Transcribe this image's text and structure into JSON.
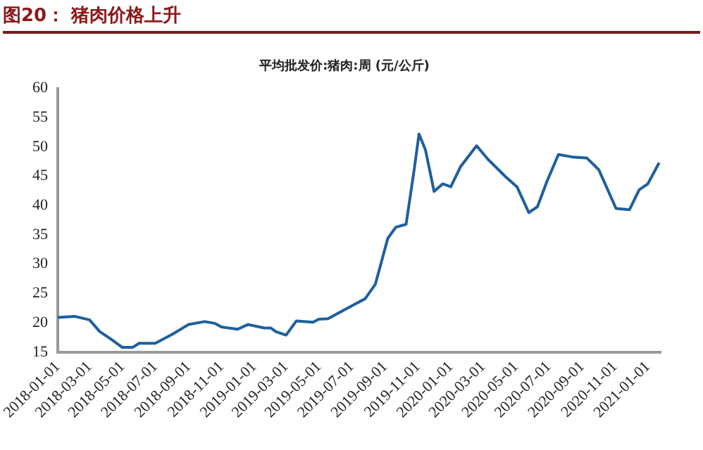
{
  "chart_data": {
    "type": "line",
    "title": "图20：  猪肉价格上升",
    "subtitle": "平均批发价:猪肉:周 (元/公斤)",
    "x": [
      "2018-01-01",
      "2018-02-01",
      "2018-03-01",
      "2018-03-20",
      "2018-04-10",
      "2018-05-01",
      "2018-05-20",
      "2018-06-01",
      "2018-07-01",
      "2018-08-01",
      "2018-09-01",
      "2018-10-01",
      "2018-10-20",
      "2018-11-01",
      "2018-12-01",
      "2018-12-20",
      "2019-01-20",
      "2019-02-01",
      "2019-02-10",
      "2019-03-01",
      "2019-03-20",
      "2019-04-20",
      "2019-05-01",
      "2019-05-18",
      "2019-06-25",
      "2019-07-26",
      "2019-08-14",
      "2019-09-06",
      "2019-09-21",
      "2019-10-10",
      "2019-10-25",
      "2019-11-03",
      "2019-11-15",
      "2019-12-01",
      "2019-12-17",
      "2020-01-01",
      "2020-01-19",
      "2020-02-18",
      "2020-03-10",
      "2020-04-12",
      "2020-05-03",
      "2020-05-25",
      "2020-06-10",
      "2020-06-28",
      "2020-07-19",
      "2020-08-13",
      "2020-09-10",
      "2020-10-02",
      "2020-11-03",
      "2020-11-28",
      "2020-12-16",
      "2021-01-01",
      "2021-01-22"
    ],
    "values": [
      20.9,
      21.1,
      20.5,
      18.5,
      17.2,
      15.8,
      15.8,
      16.5,
      16.5,
      18,
      19.7,
      20.2,
      19.9,
      19.3,
      18.9,
      19.7,
      19.1,
      19.1,
      18.5,
      17.9,
      20.3,
      20.1,
      20.6,
      20.7,
      22.6,
      24.1,
      26.6,
      34.4,
      36.3,
      36.8,
      46.1,
      52.2,
      49.5,
      42.4,
      43.7,
      43.2,
      46.6,
      50.2,
      47.9,
      44.9,
      43.2,
      38.8,
      39.8,
      44.2,
      48.7,
      48.3,
      48.1,
      46.1,
      39.5,
      39.3,
      42.7,
      43.7,
      47.3
    ],
    "color": "#1f5f9e",
    "marker": "none",
    "xlim": [
      "2018-01-01",
      "2021-01-25"
    ],
    "xticks": [
      "2018-01-01",
      "2018-03-01",
      "2018-05-01",
      "2018-07-01",
      "2018-09-01",
      "2018-11-01",
      "2019-01-01",
      "2019-03-01",
      "2019-05-01",
      "2019-07-01",
      "2019-09-01",
      "2019-11-01",
      "2020-01-01",
      "2020-03-01",
      "2020-05-01",
      "2020-07-01",
      "2020-09-01",
      "2020-11-01",
      "2021-01-01"
    ],
    "ylim": [
      15,
      60
    ],
    "yticks": [
      15,
      20,
      25,
      30,
      35,
      40,
      45,
      50,
      55,
      60
    ]
  }
}
